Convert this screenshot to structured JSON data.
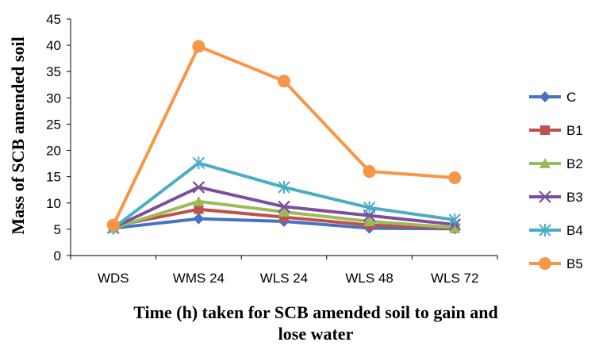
{
  "chart_data": {
    "type": "line",
    "title": "",
    "xlabel_lines": [
      "Time (h) taken for SCB amended soil to gain and",
      "lose water"
    ],
    "ylabel": "Mass of SCB amended soil",
    "categories": [
      "WDS",
      "WMS 24",
      "WLS 24",
      "WLS 48",
      "WLS 72"
    ],
    "ylim": [
      0,
      45
    ],
    "yticks": [
      0,
      5,
      10,
      15,
      20,
      25,
      30,
      35,
      40,
      45
    ],
    "grid": false,
    "legend_position": "right",
    "series": [
      {
        "name": "C",
        "color": "#4472C4",
        "marker": "diamond",
        "values": [
          5.2,
          7.0,
          6.5,
          5.2,
          5.1
        ]
      },
      {
        "name": "B1",
        "color": "#C0504D",
        "marker": "square",
        "values": [
          5.6,
          8.8,
          7.3,
          5.8,
          5.2
        ]
      },
      {
        "name": "B2",
        "color": "#9BBB59",
        "marker": "triangle",
        "values": [
          5.2,
          10.3,
          8.3,
          6.5,
          5.3
        ]
      },
      {
        "name": "B3",
        "color": "#7B4F9D",
        "marker": "x",
        "values": [
          5.3,
          13.0,
          9.3,
          7.6,
          5.9
        ]
      },
      {
        "name": "B4",
        "color": "#4BACC6",
        "marker": "star",
        "values": [
          5.2,
          17.6,
          13.0,
          9.1,
          6.8
        ]
      },
      {
        "name": "B5",
        "color": "#F79646",
        "marker": "circle",
        "values": [
          5.8,
          39.8,
          33.2,
          16.0,
          14.8
        ]
      }
    ]
  }
}
